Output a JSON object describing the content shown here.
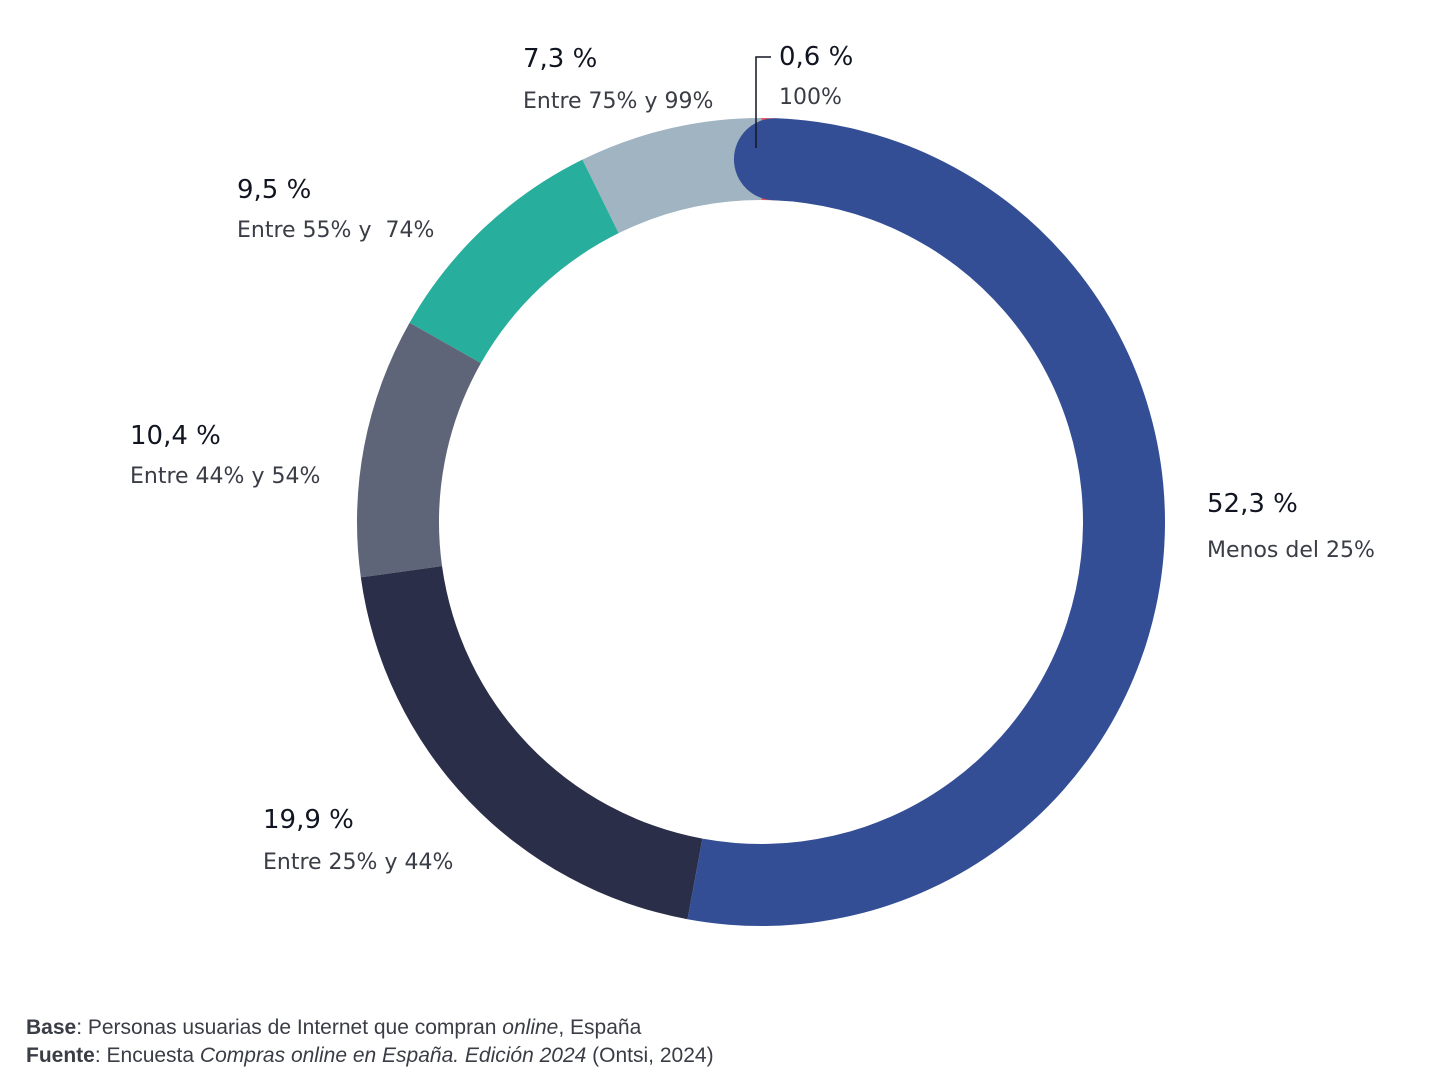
{
  "chart_data": {
    "type": "pie",
    "donut": true,
    "slices": [
      {
        "label": "Menos del 25%",
        "value": 52.3,
        "value_label": "52,3 %",
        "color": "#344e96"
      },
      {
        "label": "Entre 25% y 44%",
        "value": 19.9,
        "value_label": "19,9 %",
        "color": "#2a2e48"
      },
      {
        "label": "Entre 44% y 54%",
        "value": 10.4,
        "value_label": "10,4 %",
        "color": "#5f6579"
      },
      {
        "label": "Entre 55% y  74%",
        "value": 9.5,
        "value_label": "9,5 %",
        "color": "#27ae9c"
      },
      {
        "label": "Entre 75% y 99%",
        "value": 7.3,
        "value_label": "7,3 %",
        "color": "#a1b4c1"
      },
      {
        "label": "100%",
        "value": 0.6,
        "value_label": "0,6 %",
        "color": "#e05558"
      }
    ]
  },
  "footer": {
    "base_label": "Base",
    "base_text": "Personas usuarias de Internet que compran ",
    "base_italic": "online",
    "base_suffix": ", España",
    "source_label": "Fuente",
    "source_text": "Encuesta ",
    "source_italic": "Compras online en España. Edición 2024",
    "source_suffix": " (Ontsi, 2024)"
  }
}
